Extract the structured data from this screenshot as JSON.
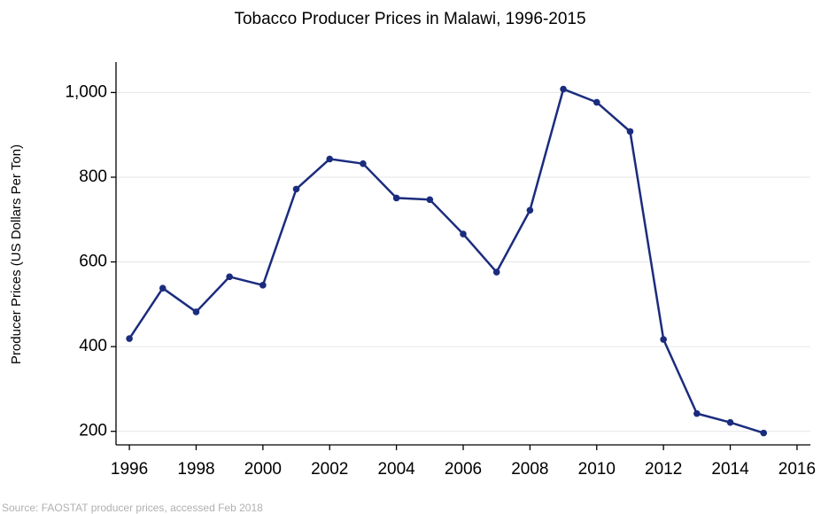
{
  "chart_data": {
    "type": "line",
    "title": "Tobacco Producer Prices in Malawi, 1996-2015",
    "y_label": "Producer Prices (US Dollars Per Ton)",
    "source": "Source: FAOSTAT producer prices, accessed Feb 2018",
    "x": [
      1996,
      1997,
      1998,
      1999,
      2000,
      2001,
      2002,
      2003,
      2004,
      2005,
      2006,
      2007,
      2008,
      2009,
      2010,
      2011,
      2012,
      2013,
      2014,
      2015
    ],
    "values": [
      419,
      538,
      482,
      565,
      545,
      772,
      843,
      832,
      751,
      747,
      666,
      576,
      722,
      1008,
      977,
      908,
      417,
      242,
      221,
      196
    ],
    "color": "#1b2c7e",
    "xlim": [
      1995.6,
      2016.4
    ],
    "xticks": [
      1996,
      1998,
      2000,
      2002,
      2004,
      2006,
      2008,
      2010,
      2012,
      2014,
      2016
    ],
    "ylim": [
      168,
      1072
    ],
    "yticks": [
      200,
      400,
      600,
      800,
      {
        "value": 1000,
        "label": "1,000"
      }
    ],
    "grid": true
  }
}
